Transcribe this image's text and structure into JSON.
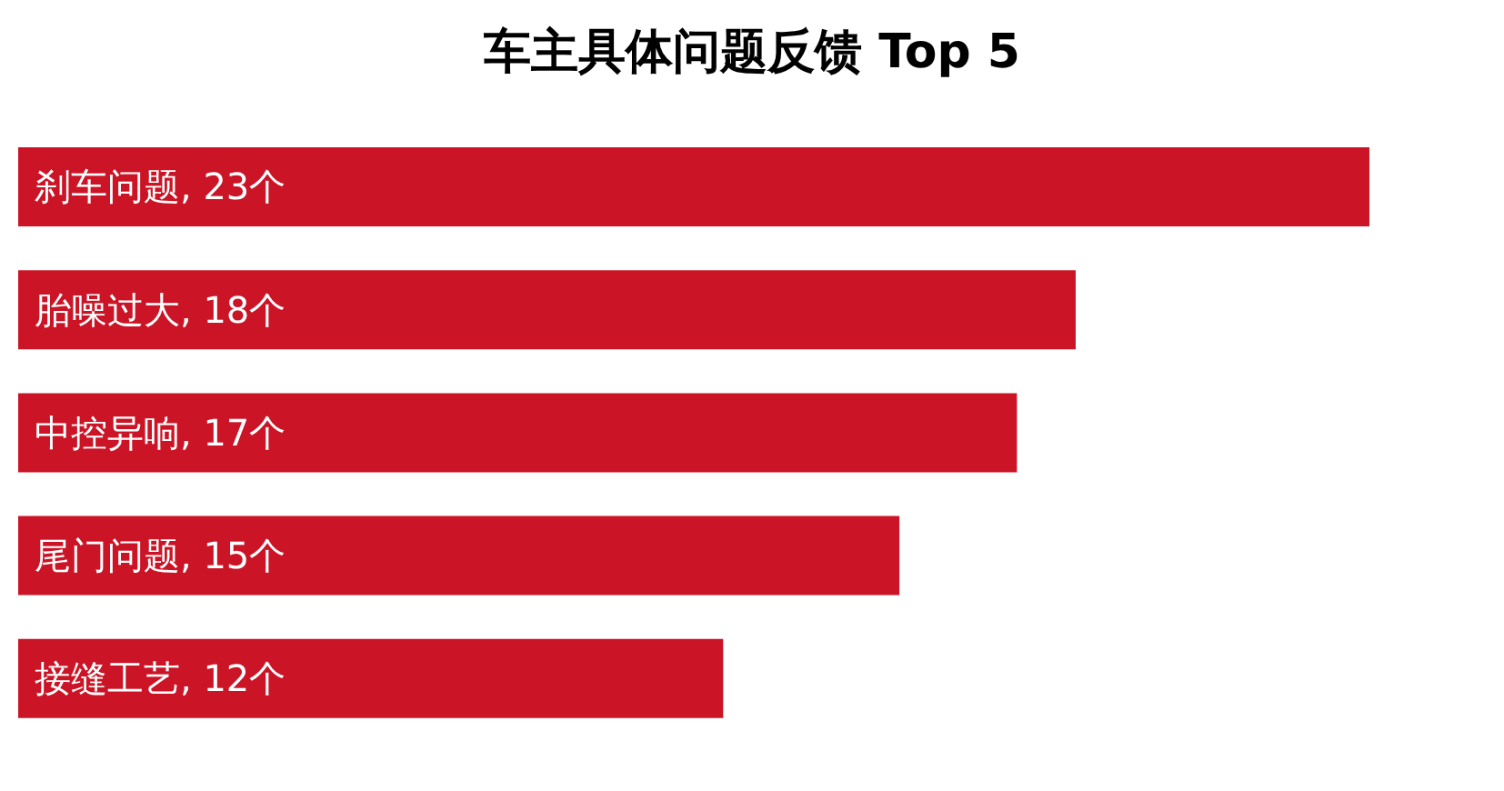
{
  "chart_data": {
    "type": "bar",
    "orientation": "horizontal",
    "title": "车主具体问题反馈 Top 5",
    "categories": [
      null,
      null,
      null,
      null,
      null
    ],
    "values": [
      23,
      18,
      17,
      15,
      12
    ],
    "value_labels": [
      "刹车问题, 23个",
      "胎噪过大, 18个",
      "中控异响, 17个",
      "尾门问题, 15个",
      "接缝工艺, 12个"
    ],
    "color": "#cb1426"
  }
}
